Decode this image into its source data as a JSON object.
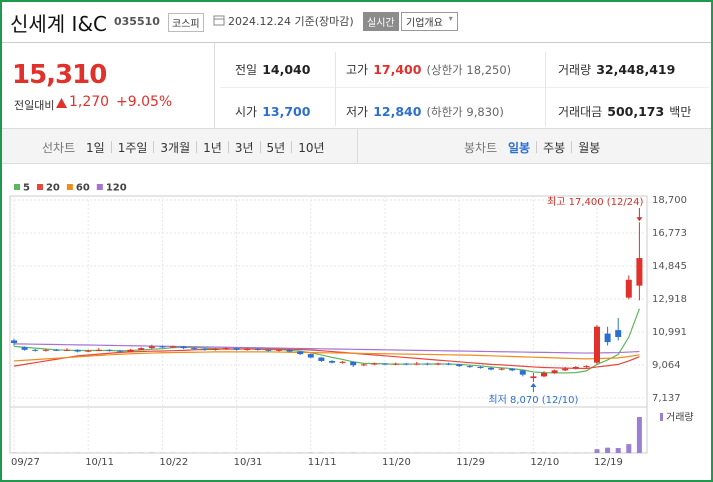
{
  "header": {
    "name": "신세계 I&C",
    "code": "035510",
    "market": "코스피",
    "date": "2024.12.24 기준(장마감)",
    "realtime": "실시간",
    "company_button": "기업개요"
  },
  "quote": {
    "price": "15,310",
    "change_label": "전일대비",
    "change": "1,270",
    "change_pct": "+9.05%"
  },
  "stats": {
    "prev": {
      "label": "전일",
      "value": "14,040"
    },
    "high": {
      "label": "고가",
      "value": "17,400",
      "extra": "(상한가 18,250)"
    },
    "volume": {
      "label": "거래량",
      "value": "32,448,419"
    },
    "open": {
      "label": "시가",
      "value": "13,700"
    },
    "low": {
      "label": "저가",
      "value": "12,840",
      "extra": "(하한가 9,830)"
    },
    "amount": {
      "label": "거래대금",
      "value": "500,173",
      "unit": "백만"
    }
  },
  "tabs": {
    "line_chart": {
      "label": "선차트",
      "periods": [
        "1일",
        "1주일",
        "3개월",
        "1년",
        "3년",
        "5년",
        "10년"
      ]
    },
    "candle_chart": {
      "label": "봉차트",
      "periods": [
        "일봉",
        "주봉",
        "월봉"
      ]
    }
  },
  "chart_data": {
    "type": "candlestick",
    "categories": [
      "09/27",
      null,
      null,
      null,
      null,
      null,
      null,
      "10/11",
      null,
      null,
      null,
      null,
      null,
      null,
      "10/22",
      null,
      null,
      null,
      null,
      null,
      null,
      "10/31",
      null,
      null,
      null,
      null,
      null,
      null,
      "11/11",
      null,
      null,
      null,
      null,
      null,
      null,
      "11/20",
      null,
      null,
      null,
      null,
      null,
      null,
      "11/29",
      null,
      null,
      null,
      null,
      null,
      null,
      "12/10",
      null,
      null,
      null,
      null,
      null,
      "12/19",
      null,
      null,
      null,
      null
    ],
    "open": [
      10500,
      10100,
      9950,
      9900,
      9950,
      9900,
      9950,
      9850,
      9900,
      9950,
      9900,
      9850,
      9950,
      10050,
      10150,
      10100,
      10150,
      10050,
      10000,
      9950,
      10000,
      10050,
      9950,
      10000,
      9950,
      9900,
      9950,
      9850,
      9700,
      9500,
      9300,
      9200,
      9250,
      9050,
      9100,
      9150,
      9100,
      9150,
      9100,
      9150,
      9100,
      9150,
      9100,
      9000,
      8950,
      8900,
      8800,
      8850,
      8750,
      8300,
      8400,
      8600,
      8750,
      8850,
      8950,
      9200,
      10900,
      11100,
      13000,
      13700
    ],
    "high": [
      10600,
      10150,
      10000,
      10000,
      10000,
      10050,
      9980,
      9950,
      10050,
      9980,
      9950,
      10000,
      10100,
      10250,
      10200,
      10200,
      10180,
      10100,
      10050,
      10050,
      10100,
      10080,
      10050,
      10050,
      9980,
      10000,
      9980,
      9880,
      9720,
      9520,
      9350,
      9300,
      9280,
      9150,
      9200,
      9180,
      9200,
      9180,
      9250,
      9200,
      9200,
      9200,
      9120,
      9050,
      9000,
      8950,
      8900,
      8880,
      8780,
      8600,
      8700,
      8800,
      8950,
      9000,
      9050,
      11400,
      11300,
      11800,
      14300,
      17400
    ],
    "low": [
      10200,
      9900,
      9850,
      9850,
      9880,
      9880,
      9800,
      9820,
      9880,
      9850,
      9800,
      9820,
      9950,
      10000,
      10050,
      10050,
      10000,
      9950,
      9900,
      9900,
      9950,
      9900,
      9900,
      9900,
      9850,
      9850,
      9800,
      9650,
      9450,
      9250,
      9150,
      9150,
      8950,
      9000,
      9050,
      9050,
      9050,
      9050,
      9050,
      9050,
      9050,
      9050,
      8950,
      8900,
      8850,
      8750,
      8750,
      8700,
      8400,
      8070,
      8350,
      8550,
      8700,
      8800,
      8900,
      9100,
      10200,
      10500,
      12900,
      12840
    ],
    "close": [
      10350,
      9950,
      9900,
      9950,
      9900,
      9950,
      9850,
      9900,
      9950,
      9900,
      9850,
      9950,
      10050,
      10150,
      10100,
      10150,
      10050,
      10000,
      9950,
      10000,
      10050,
      9950,
      10000,
      9950,
      9900,
      9950,
      9850,
      9700,
      9500,
      9300,
      9200,
      9250,
      9050,
      9100,
      9150,
      9100,
      9150,
      9100,
      9150,
      9100,
      9150,
      9100,
      9000,
      8950,
      8900,
      8800,
      8850,
      8750,
      8500,
      8400,
      8600,
      8750,
      8850,
      8950,
      9000,
      11300,
      10400,
      10700,
      14040,
      15310
    ],
    "up_color": "#e0312b",
    "down_color": "#2c6fd1",
    "series": [
      {
        "name": "5",
        "color": "#5cb85c",
        "values": [
          10150,
          10100,
          10050,
          10000,
          9950,
          9930,
          9910,
          9910,
          9910,
          9910,
          9890,
          9910,
          9940,
          9980,
          10020,
          10080,
          10100,
          10090,
          10050,
          10020,
          10000,
          10000,
          10000,
          9990,
          9970,
          9950,
          9930,
          9870,
          9780,
          9650,
          9510,
          9390,
          9250,
          9160,
          9150,
          9130,
          9110,
          9120,
          9120,
          9120,
          9130,
          9120,
          9100,
          9060,
          9010,
          8950,
          8900,
          8850,
          8780,
          8660,
          8620,
          8600,
          8600,
          8620,
          8720,
          9100,
          9360,
          9680,
          10690,
          12350
        ]
      },
      {
        "name": "20",
        "color": "#e8463c",
        "values": [
          9000,
          9100,
          9200,
          9300,
          9400,
          9500,
          9600,
          9650,
          9700,
          9750,
          9800,
          9830,
          9850,
          9870,
          9880,
          9900,
          9920,
          9950,
          9970,
          9980,
          10000,
          10000,
          10010,
          10010,
          10000,
          10000,
          9990,
          9970,
          9940,
          9900,
          9850,
          9800,
          9750,
          9700,
          9650,
          9600,
          9550,
          9500,
          9450,
          9400,
          9350,
          9300,
          9250,
          9200,
          9150,
          9100,
          9070,
          9030,
          8990,
          8950,
          8920,
          8900,
          8880,
          8870,
          8860,
          8950,
          9020,
          9100,
          9300,
          9550
        ]
      },
      {
        "name": "60",
        "color": "#f08c1e",
        "values": [
          9300,
          9340,
          9380,
          9420,
          9460,
          9500,
          9540,
          9580,
          9620,
          9660,
          9690,
          9720,
          9740,
          9760,
          9780,
          9790,
          9800,
          9810,
          9820,
          9830,
          9830,
          9830,
          9830,
          9830,
          9830,
          9820,
          9810,
          9800,
          9790,
          9780,
          9770,
          9760,
          9750,
          9740,
          9730,
          9720,
          9710,
          9700,
          9690,
          9680,
          9670,
          9660,
          9650,
          9640,
          9620,
          9600,
          9580,
          9560,
          9540,
          9520,
          9500,
          9480,
          9460,
          9440,
          9420,
          9440,
          9460,
          9480,
          9560,
          9660
        ]
      },
      {
        "name": "120",
        "color": "#a374d4",
        "values": [
          10300,
          10290,
          10280,
          10270,
          10260,
          10250,
          10240,
          10230,
          10220,
          10210,
          10200,
          10190,
          10180,
          10170,
          10160,
          10150,
          10140,
          10130,
          10120,
          10110,
          10100,
          10090,
          10080,
          10070,
          10060,
          10050,
          10040,
          10030,
          10020,
          10010,
          10000,
          9990,
          9980,
          9970,
          9960,
          9950,
          9940,
          9930,
          9920,
          9910,
          9900,
          9890,
          9880,
          9870,
          9860,
          9850,
          9840,
          9830,
          9820,
          9810,
          9800,
          9790,
          9780,
          9770,
          9760,
          9770,
          9780,
          9790,
          9820,
          9850
        ]
      }
    ],
    "volume": {
      "name": "거래량",
      "color": "#9b7fd3",
      "values": [
        180000,
        150000,
        120000,
        110000,
        100000,
        130000,
        120000,
        90000,
        140000,
        100000,
        95000,
        160000,
        210000,
        250000,
        150000,
        130000,
        110000,
        100000,
        90000,
        120000,
        140000,
        100000,
        95000,
        90000,
        85000,
        110000,
        90000,
        160000,
        240000,
        220000,
        150000,
        120000,
        200000,
        110000,
        100000,
        90000,
        95000,
        88000,
        120000,
        90000,
        85000,
        80000,
        110000,
        100000,
        95000,
        120000,
        90000,
        130000,
        210000,
        280000,
        180000,
        150000,
        140000,
        120000,
        110000,
        3400000,
        4800000,
        4500000,
        8000000,
        32448419
      ]
    },
    "ylim": [
      7137,
      18700
    ],
    "yticks": [
      {
        "value": 18700,
        "label": "18,700"
      },
      {
        "value": 16773,
        "label": "16,773"
      },
      {
        "value": 14845,
        "label": "14,845"
      },
      {
        "value": 12918,
        "label": "12,918"
      },
      {
        "value": 10991,
        "label": "10,991"
      },
      {
        "value": 9064,
        "label": "9,064"
      },
      {
        "value": 7137,
        "label": "7,137"
      }
    ],
    "grid": true,
    "high_annotation": "최고 17,400 (12/24)",
    "low_annotation": "최저 8,070 (12/10)"
  }
}
